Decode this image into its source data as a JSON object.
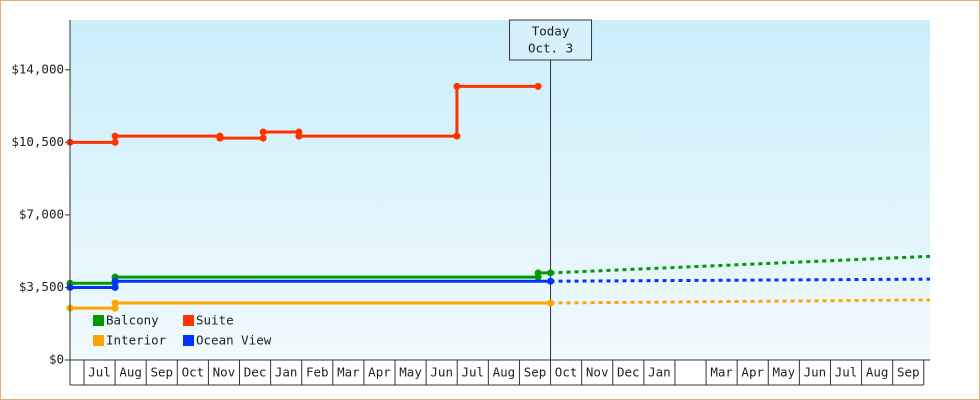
{
  "chart_data": {
    "type": "line",
    "categories": [
      "Jul",
      "Aug",
      "Sep",
      "Oct",
      "Nov",
      "Dec",
      "Jan",
      "Feb",
      "Mar",
      "Apr",
      "May",
      "Jun",
      "Jul",
      "Aug",
      "Sep",
      "Oct",
      "Nov",
      "Dec",
      "Jan",
      null,
      "Mar",
      "Apr",
      "May",
      "Jun",
      "Jul",
      "Aug",
      "Sep"
    ],
    "xlim": [
      -0.45,
      27.2
    ],
    "ylim": [
      0,
      16400
    ],
    "yticks": [
      {
        "value": 0,
        "label": "$0"
      },
      {
        "value": 3500,
        "label": "$3,500"
      },
      {
        "value": 7000,
        "label": "$7,000"
      },
      {
        "value": 10500,
        "label": "$10,500"
      },
      {
        "value": 14000,
        "label": "$14,000"
      }
    ],
    "annotation": {
      "lines": [
        "Today",
        "Oct. 3"
      ],
      "x": 15
    },
    "legend": "lower left",
    "series": [
      {
        "name": "Balcony",
        "color": "#009a00",
        "x": [
          -0.45,
          1.0,
          1.0,
          14.6,
          14.6,
          15
        ],
        "values": [
          3700,
          3700,
          4000,
          4000,
          4200,
          4200
        ],
        "forecast": {
          "x": [
            15,
            27.2
          ],
          "values": [
            4200,
            5000
          ]
        }
      },
      {
        "name": "Suite",
        "color": "#ff3300",
        "x": [
          -0.45,
          1.0,
          1.0,
          4.37,
          4.37,
          5.76,
          5.76,
          6.91,
          6.91,
          11.99,
          11.99,
          14.6
        ],
        "values": [
          10500,
          10500,
          10800,
          10800,
          10700,
          10700,
          11000,
          11000,
          10800,
          10800,
          13200,
          13200
        ]
      },
      {
        "name": "Interior",
        "color": "#ffa500",
        "x": [
          -0.45,
          1.0,
          1.0,
          15
        ],
        "values": [
          2500,
          2500,
          2750,
          2750
        ],
        "forecast": {
          "x": [
            15,
            27.2
          ],
          "values": [
            2750,
            2900
          ]
        }
      },
      {
        "name": "Ocean View",
        "color": "#0033ff",
        "x": [
          -0.45,
          1.0,
          1.0,
          15
        ],
        "values": [
          3500,
          3500,
          3800,
          3800
        ],
        "forecast": {
          "x": [
            15,
            27.2
          ],
          "values": [
            3800,
            3900
          ]
        }
      }
    ]
  }
}
